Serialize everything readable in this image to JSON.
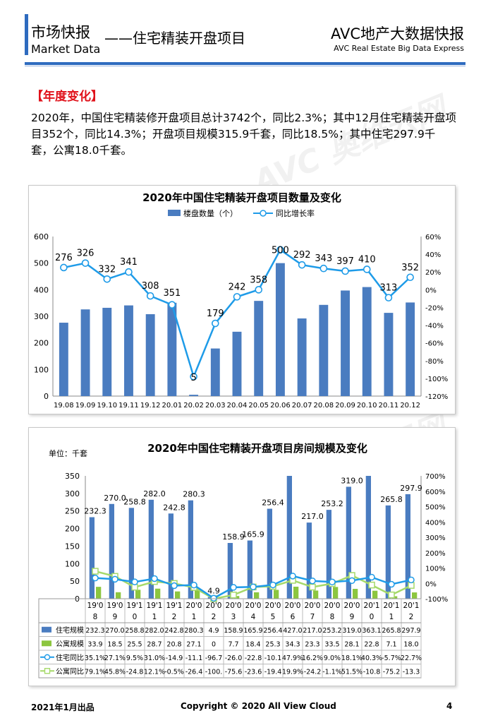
{
  "header": {
    "title": "市场快报",
    "subtitle": "Market Data",
    "topic": "——住宅精装开盘项目",
    "brand": "AVC地产大数据快报",
    "brand_sub": "AVC  Real Estate Big Data Express",
    "brand_color": "#2e6bbf"
  },
  "section": {
    "title": "【年度变化】",
    "title_color": "#e0121b",
    "body": "2020年，中国住宅精装修开盘项目总计3742个，同比2.3%；其中12月住宅精装开盘项目352个，同比14.3%；开盘项目规模315.9千套，同比18.5%；其中住宅297.9千套，公寓18.0千套。"
  },
  "watermark": {
    "text": "AVC 奥维云网"
  },
  "chart_data": [
    {
      "type": "bar",
      "title": "2020年中国住宅精装开盘项目数量及变化",
      "legend": [
        "楼盘数量（个）",
        "同比增长率"
      ],
      "categories": [
        "19.08",
        "19.09",
        "19.10",
        "19.11",
        "19.12",
        "20.01",
        "20.02",
        "20.03",
        "20.04",
        "20.05",
        "20.06",
        "20.07",
        "20.08",
        "20.09",
        "20.10",
        "20.11",
        "20.12"
      ],
      "y_left": {
        "ticks": [
          "0",
          "100",
          "200",
          "300",
          "400",
          "500",
          "600"
        ],
        "range": [
          0,
          600
        ]
      },
      "y_right": {
        "ticks": [
          "-120%",
          "-100%",
          "-80%",
          "-60%",
          "-40%",
          "-20%",
          "0%",
          "20%",
          "40%",
          "60%"
        ],
        "range": [
          -120,
          60
        ]
      },
      "series": [
        {
          "name": "楼盘数量（个）",
          "axis": "left",
          "color": "#4a7cc0",
          "values": [
            276,
            326,
            332,
            341,
            308,
            351,
            5,
            179,
            242,
            358,
            500,
            292,
            343,
            397,
            410,
            313,
            352
          ]
        },
        {
          "name": "同比增长率",
          "axis": "right",
          "color": "#1e9be8",
          "values": [
            25,
            30,
            12,
            20,
            -7,
            -17,
            -98,
            -38,
            -8,
            0,
            45,
            28,
            24,
            21,
            23,
            -9,
            14
          ]
        }
      ]
    },
    {
      "type": "table",
      "title": "2020年中国住宅精装开盘项目房间规模及变化",
      "unit_label": "单位：千套",
      "categories": [
        "19'08",
        "19'09",
        "19'10",
        "19'11",
        "19'12",
        "20'01",
        "20'02",
        "20'03",
        "20'04",
        "20'05",
        "20'06",
        "20'07",
        "20'08",
        "20'09",
        "20'10",
        "20'11",
        "20'12"
      ],
      "y_left": {
        "ticks": [
          "0",
          "50",
          "100",
          "150",
          "200",
          "250",
          "300",
          "350"
        ],
        "range": [
          0,
          350
        ]
      },
      "y_right": {
        "ticks": [
          "-100%",
          "0%",
          "100%",
          "200%",
          "300%",
          "400%",
          "500%",
          "600%",
          "700%"
        ],
        "range": [
          -100,
          700
        ]
      },
      "bar_labels": [
        "232.3",
        "270.0",
        "258.8",
        "282.0",
        "242.8",
        "280.3",
        "4.9",
        "158.9",
        "165.9",
        "256.4",
        "",
        "217.0",
        "253.2",
        "319.0",
        "",
        "265.8",
        "297.9"
      ],
      "series": [
        {
          "name": "住宅规模",
          "axis": "left",
          "color": "#4a7cc0",
          "values": [
            232.3,
            270.0,
            258.8,
            282.0,
            242.8,
            280.3,
            4.9,
            158.9,
            165.9,
            256.4,
            427.0,
            217.0,
            253.2,
            319.0,
            363.1,
            265.8,
            297.9
          ],
          "display": [
            "232.3",
            "270.0",
            "258.8",
            "282.0",
            "242.8",
            "280.3",
            "4.9",
            "158.9",
            "165.9",
            "256.4",
            "427.0",
            "217.0",
            "253.2",
            "319.0",
            "363.1",
            "265.8",
            "297.9"
          ]
        },
        {
          "name": "公寓规模",
          "axis": "left",
          "color": "#8cc63f",
          "values": [
            33.9,
            18.5,
            25.5,
            28.7,
            20.8,
            27.1,
            0,
            7.7,
            18.4,
            25.3,
            34.3,
            23.3,
            33.5,
            28.1,
            22.8,
            7.1,
            18.0
          ],
          "display": [
            "33.9",
            "18.5",
            "25.5",
            "28.7",
            "20.8",
            "27.1",
            "0",
            "7.7",
            "18.4",
            "25.3",
            "34.3",
            "23.3",
            "33.5",
            "28.1",
            "22.8",
            "7.1",
            "18.0"
          ]
        },
        {
          "name": "住宅同比",
          "axis": "right",
          "color": "#1e9be8",
          "values": [
            35.1,
            27.1,
            9.5,
            31.0,
            -14.9,
            -11.1,
            -96.7,
            -26.0,
            -22.8,
            -10.1,
            47.9,
            16.2,
            9.0,
            18.1,
            40.3,
            -5.7,
            22.7
          ],
          "display": [
            "35.1%",
            "27.1%",
            "9.5%",
            "31.0%",
            "-14.9",
            "-11.1",
            "-96.7",
            "-26.0",
            "-22.8",
            "-10.1",
            "47.9%",
            "16.2%",
            "9.0%",
            "18.1%",
            "40.3%",
            "-5.7%",
            "22.7%"
          ]
        },
        {
          "name": "公寓同比",
          "axis": "right",
          "color": "#a6d96a",
          "values": [
            79.1,
            45.8,
            -24.8,
            12.1,
            -0.5,
            -26.4,
            -100,
            -75.6,
            -23.6,
            -19.4,
            19.9,
            -24.2,
            -1.1,
            51.5,
            -10.8,
            -75.2,
            -13.3
          ],
          "display": [
            "79.1%",
            "45.8%",
            "-24.8",
            "12.1%",
            "-0.5%",
            "-26.4",
            "-100.",
            "-75.6",
            "-23.6",
            "-19.4",
            "19.9%",
            "-24.2",
            "-1.1%",
            "51.5%",
            "-10.8",
            "-75.2",
            "-13.3"
          ]
        }
      ]
    }
  ],
  "footer": {
    "date": "2021年1月出品",
    "copyright": "Copyright © 2020  All View Cloud",
    "page": "4"
  }
}
